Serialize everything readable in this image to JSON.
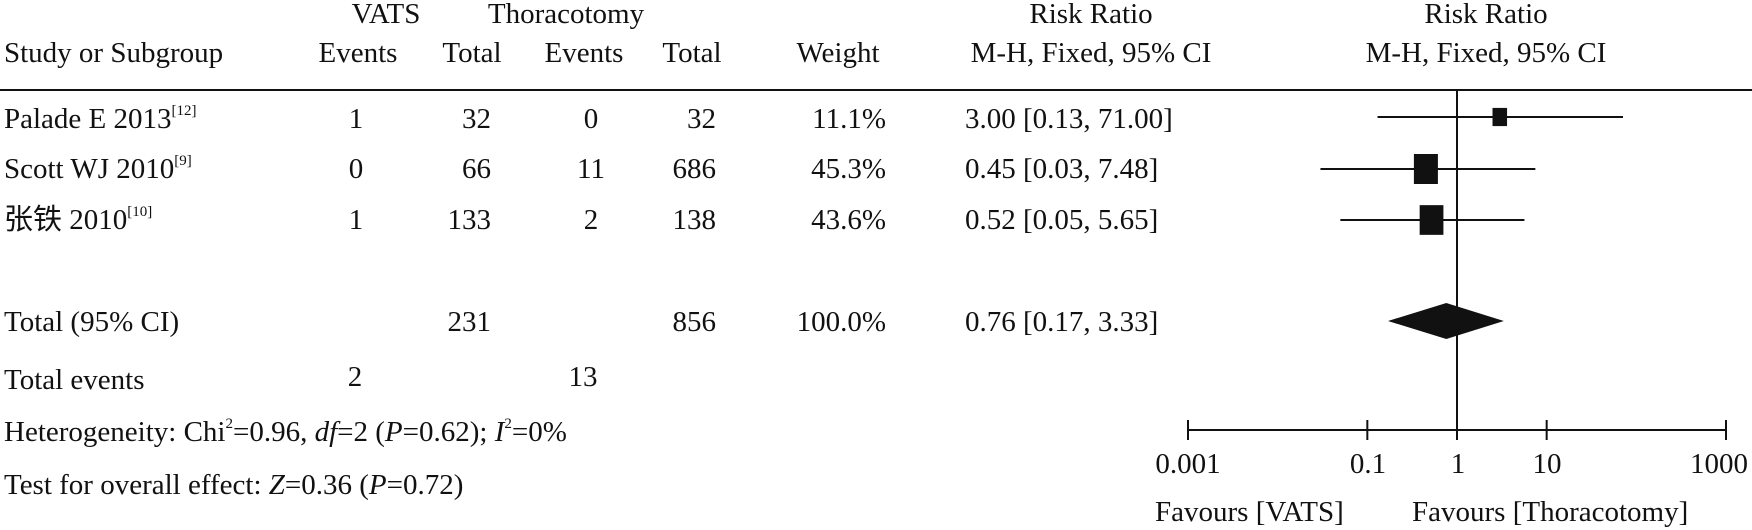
{
  "header": {
    "group1": "VATS",
    "group2": "Thoracotomy",
    "study_col": "Study or Subgroup",
    "events": "Events",
    "total": "Total",
    "weight": "Weight",
    "rr_title": "Risk Ratio",
    "rr_method": "M-H, Fixed, 95% CI"
  },
  "studies": [
    {
      "name": "Palade E 2013",
      "ref": "[12]",
      "e1": "1",
      "t1": "32",
      "e2": "0",
      "t2": "32",
      "weight": "11.1%",
      "ci": "3.00 [0.13, 71.00]"
    },
    {
      "name": "Scott WJ 2010",
      "ref": "[9]",
      "e1": "0",
      "t1": "66",
      "e2": "11",
      "t2": "686",
      "weight": "45.3%",
      "ci": "0.45 [0.03, 7.48]"
    },
    {
      "name": "张铁 2010",
      "ref": "[10]",
      "e1": "1",
      "t1": "133",
      "e2": "2",
      "t2": "138",
      "weight": "43.6%",
      "ci": "0.52 [0.05, 5.65]"
    }
  ],
  "total": {
    "label": "Total (95% CI)",
    "t1": "231",
    "t2": "856",
    "weight": "100.0%",
    "ci": "0.76 [0.17, 3.33]"
  },
  "total_events": {
    "label": "Total events",
    "e1": "2",
    "e2": "13"
  },
  "heterogeneity": {
    "prefix": "Heterogeneity: Chi",
    "chi_sup": "2",
    "chi_val": "=0.96, ",
    "df_label": "df",
    "df_val": "=2 (",
    "p_label": "P",
    "p_val": "=0.62); ",
    "i_label": "I",
    "i_sup": "2",
    "i_val": "=0%"
  },
  "overall": {
    "prefix": "Test for overall effect: ",
    "z_label": "Z",
    "z_val": "=0.36 (",
    "p_label": "P",
    "p_val": "=0.72)"
  },
  "axis": {
    "favours_left": "Favours [VATS]",
    "favours_right": "Favours [Thoracotomy]"
  },
  "chart_data": {
    "type": "forest",
    "scale": "log",
    "xlim": [
      0.001,
      1000
    ],
    "ticks": [
      {
        "value": 0.001,
        "label": "0.001"
      },
      {
        "value": 0.1,
        "label": "0.1"
      },
      {
        "value": 1,
        "label": "1"
      },
      {
        "value": 10,
        "label": "10"
      },
      {
        "value": 1000,
        "label": "1000"
      }
    ],
    "null_line": 1,
    "studies": [
      {
        "estimate": 3.0,
        "lower": 0.13,
        "upper": 71.0,
        "weight": 11.1
      },
      {
        "estimate": 0.45,
        "lower": 0.03,
        "upper": 7.48,
        "weight": 45.3
      },
      {
        "estimate": 0.52,
        "lower": 0.05,
        "upper": 5.65,
        "weight": 43.6
      }
    ],
    "summary": {
      "estimate": 0.76,
      "lower": 0.17,
      "upper": 3.33
    },
    "colors": {
      "ink": "#111111"
    }
  }
}
